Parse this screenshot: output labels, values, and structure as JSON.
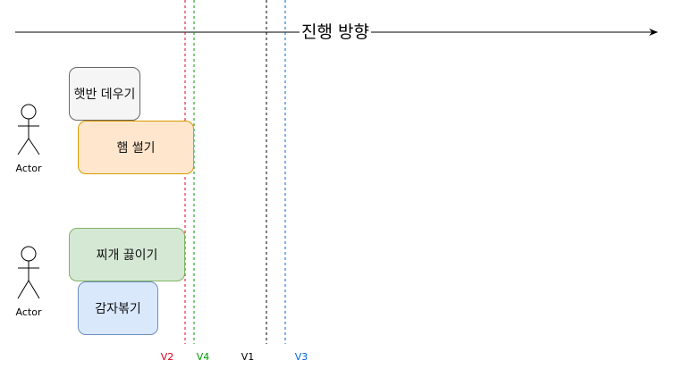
{
  "direction": {
    "label": "진행 방향"
  },
  "actors": [
    {
      "label": "Actor"
    },
    {
      "label": "Actor"
    }
  ],
  "tasks": [
    {
      "label": "햇반 데우기",
      "fill": "#f5f5f5",
      "stroke": "#666666"
    },
    {
      "label": "햄 썰기",
      "fill": "#ffe6cc",
      "stroke": "#d79b00"
    },
    {
      "label": "찌개 끓이기",
      "fill": "#d5e8d4",
      "stroke": "#82b366"
    },
    {
      "label": "감자볶기",
      "fill": "#dae8fc",
      "stroke": "#6c8ebf"
    }
  ],
  "markers": [
    {
      "label": "V2",
      "color": "#e0001a"
    },
    {
      "label": "V4",
      "color": "#009900"
    },
    {
      "label": "V1",
      "color": "#000000"
    },
    {
      "label": "V3",
      "color": "#0066dd"
    }
  ]
}
